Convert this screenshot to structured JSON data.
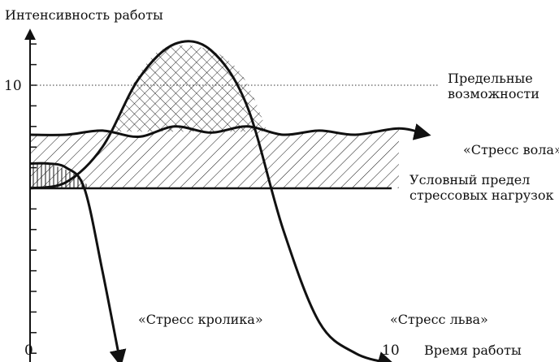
{
  "chart_data": {
    "type": "line",
    "title": "",
    "ylabel": "Интенсивность работы",
    "xlabel": "Время работы",
    "xlim": [
      0,
      10
    ],
    "ylim": [
      -4,
      13
    ],
    "x_tick_labels": [
      "0",
      "10"
    ],
    "y_tick_labels": [
      "10"
    ],
    "grid": false,
    "reference_lines": [
      {
        "name": "limit",
        "y": 10,
        "style": "dotted",
        "label_lines": [
          "Предельные",
          "возможности"
        ]
      },
      {
        "name": "threshold",
        "y": 5,
        "style": "solid",
        "label_lines": [
          "Условный предел",
          "стрессовых нагрузок"
        ]
      }
    ],
    "series": [
      {
        "name": "«Стресс вола»",
        "x": [
          0,
          1,
          2,
          3,
          4,
          5,
          6,
          7,
          8,
          9,
          10.2,
          11
        ],
        "y": [
          7.6,
          7.6,
          7.8,
          7.5,
          8,
          7.7,
          8,
          7.6,
          7.8,
          7.6,
          7.9,
          7.6
        ]
      },
      {
        "name": "«Стресс льва»",
        "x": [
          0,
          1,
          2,
          3,
          4,
          5,
          6,
          7,
          8,
          9,
          10
        ],
        "y": [
          5,
          5.3,
          7,
          10.3,
          12,
          11.7,
          9,
          3,
          -1.5,
          -3,
          -3.5
        ]
      },
      {
        "name": "«Стресс кролика»",
        "x": [
          0,
          0.5,
          1,
          1.5,
          2,
          2.5
        ],
        "y": [
          6.2,
          6.2,
          6,
          5,
          1,
          -3.5
        ]
      }
    ]
  }
}
